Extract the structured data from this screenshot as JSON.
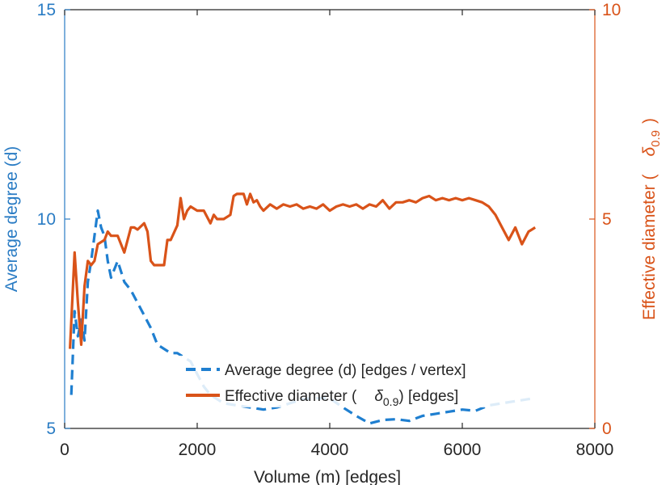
{
  "chart_data": {
    "type": "line",
    "title": "",
    "xlabel": "Volume (m) [edges]",
    "xlim": [
      0,
      8000
    ],
    "x_ticks": [
      "0",
      "2000",
      "4000",
      "6000",
      "8000"
    ],
    "x_tick_values": [
      0,
      2000,
      4000,
      6000,
      8000
    ],
    "left_axis": {
      "label": "Average degree (d)",
      "ylim": [
        5,
        15
      ],
      "ticks": [
        "5",
        "10",
        "15"
      ],
      "tick_values": [
        5,
        10,
        15
      ],
      "color": "#2a7cc4"
    },
    "right_axis": {
      "label_prefix": "Effective diameter (",
      "label_symbol": "δ",
      "label_sub": "0.9",
      "label_suffix": ")",
      "ylim": [
        0,
        10
      ],
      "ticks": [
        "0",
        "5",
        "10"
      ],
      "tick_values": [
        0,
        5,
        10
      ],
      "color": "#d95319"
    },
    "grid": false,
    "legend_position": "bottom-right",
    "series": [
      {
        "name": "Average degree (d) [edges / vertex]",
        "axis": "left",
        "style": "dashed",
        "color": "#1f7fd0",
        "x": [
          100,
          150,
          200,
          250,
          300,
          350,
          400,
          450,
          500,
          550,
          600,
          650,
          700,
          800,
          900,
          1000,
          1100,
          1200,
          1300,
          1400,
          1500,
          1600,
          1700,
          1800,
          1900,
          2000,
          2100,
          2200,
          2400,
          2600,
          2800,
          3000,
          3200,
          3400,
          3600,
          3800,
          4000,
          4200,
          4400,
          4600,
          4800,
          5000,
          5200,
          5400,
          5600,
          5800,
          6000,
          6200,
          6400,
          6600,
          6800,
          7000,
          7100
        ],
        "values": [
          5.8,
          7.8,
          7.2,
          7.6,
          7.1,
          8.5,
          9.0,
          9.6,
          10.2,
          9.8,
          9.6,
          9.0,
          8.6,
          9.0,
          8.5,
          8.3,
          8.0,
          7.7,
          7.4,
          7.0,
          6.9,
          6.8,
          6.8,
          6.7,
          6.6,
          6.3,
          6.0,
          5.8,
          5.6,
          5.55,
          5.5,
          5.45,
          5.5,
          5.6,
          5.7,
          5.72,
          5.72,
          5.5,
          5.3,
          5.12,
          5.2,
          5.22,
          5.18,
          5.3,
          5.35,
          5.4,
          5.45,
          5.42,
          5.55,
          5.6,
          5.65,
          5.7,
          5.72
        ]
      },
      {
        "name_prefix": "Effective diameter (",
        "name_symbol": "δ",
        "name_sub": "0.9",
        "name_suffix": ") [edges]",
        "axis": "right",
        "style": "solid",
        "color": "#d95319",
        "x": [
          80,
          150,
          200,
          250,
          300,
          350,
          400,
          450,
          500,
          600,
          650,
          700,
          750,
          800,
          900,
          1000,
          1050,
          1100,
          1200,
          1250,
          1300,
          1350,
          1400,
          1500,
          1550,
          1600,
          1700,
          1750,
          1800,
          1850,
          1900,
          2000,
          2100,
          2200,
          2250,
          2300,
          2400,
          2500,
          2550,
          2600,
          2700,
          2750,
          2800,
          2850,
          2900,
          2950,
          3000,
          3100,
          3200,
          3300,
          3400,
          3500,
          3600,
          3700,
          3800,
          3900,
          4000,
          4100,
          4200,
          4300,
          4400,
          4500,
          4600,
          4700,
          4800,
          4900,
          5000,
          5100,
          5200,
          5300,
          5400,
          5500,
          5600,
          5700,
          5800,
          5900,
          6000,
          6100,
          6200,
          6300,
          6400,
          6500,
          6600,
          6700,
          6800,
          6900,
          7000,
          7050,
          7100
        ],
        "values": [
          1.9,
          4.2,
          3.0,
          2.0,
          3.4,
          4.0,
          3.9,
          4.0,
          4.4,
          4.5,
          4.7,
          4.6,
          4.6,
          4.6,
          4.2,
          4.8,
          4.8,
          4.75,
          4.9,
          4.7,
          4.0,
          3.9,
          3.9,
          3.9,
          4.5,
          4.5,
          4.85,
          5.5,
          5.0,
          5.2,
          5.3,
          5.2,
          5.2,
          4.9,
          5.1,
          5.0,
          5.0,
          5.1,
          5.55,
          5.6,
          5.6,
          5.35,
          5.6,
          5.4,
          5.45,
          5.3,
          5.2,
          5.35,
          5.25,
          5.35,
          5.3,
          5.35,
          5.25,
          5.3,
          5.25,
          5.35,
          5.2,
          5.3,
          5.35,
          5.3,
          5.35,
          5.25,
          5.35,
          5.3,
          5.45,
          5.25,
          5.4,
          5.4,
          5.45,
          5.4,
          5.5,
          5.55,
          5.45,
          5.5,
          5.45,
          5.5,
          5.45,
          5.5,
          5.45,
          5.4,
          5.3,
          5.1,
          4.8,
          4.5,
          4.8,
          4.4,
          4.7,
          4.75,
          4.8
        ]
      }
    ]
  }
}
